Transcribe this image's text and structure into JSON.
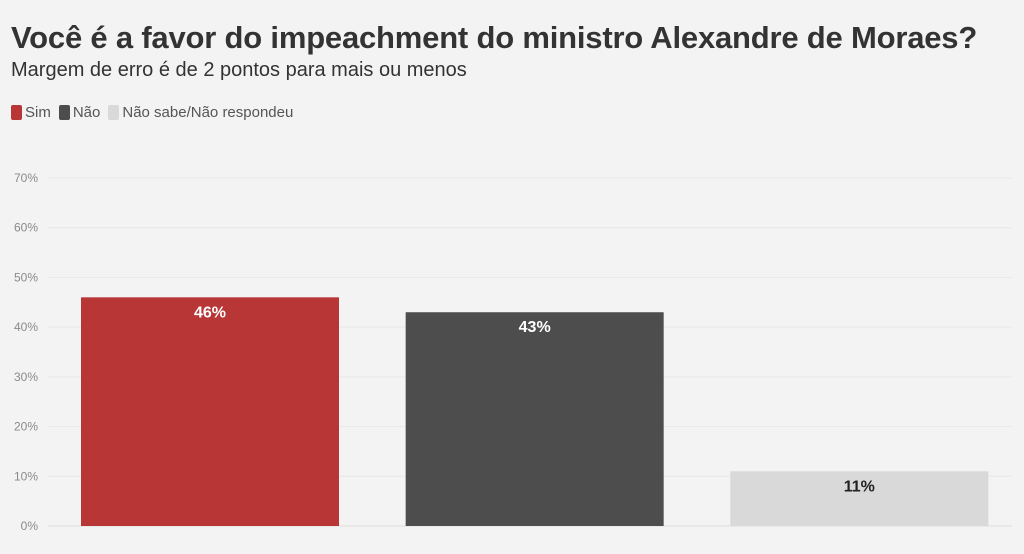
{
  "title": "Você é a favor do impeachment do ministro Alexandre de Moraes?",
  "subtitle": "Margem de erro é de 2 pontos para mais ou menos",
  "legend": [
    {
      "label": "Sim",
      "color": "#b83636"
    },
    {
      "label": "Não",
      "color": "#4d4d4d"
    },
    {
      "label": "Não sabe/Não respondeu",
      "color": "#d9d9d9"
    }
  ],
  "chart_data": {
    "type": "bar",
    "categories": [
      "Sim",
      "Não",
      "Não sabe/Não respondeu"
    ],
    "values": [
      46,
      43,
      11
    ],
    "value_labels": [
      "46%",
      "43%",
      "11%"
    ],
    "colors": [
      "#b83636",
      "#4d4d4d",
      "#d9d9d9"
    ],
    "label_colors": [
      "#ffffff",
      "#ffffff",
      "#222222"
    ],
    "title": "Você é a favor do impeachment do ministro Alexandre de Moraes?",
    "subtitle": "Margem de erro é de 2 pontos para mais ou menos",
    "ylim": [
      0,
      70
    ],
    "yticks": [
      0,
      10,
      20,
      30,
      40,
      50,
      60,
      70
    ],
    "ytick_labels": [
      "0%",
      "10%",
      "20%",
      "30%",
      "40%",
      "50%",
      "60%",
      "70%"
    ],
    "grid": true,
    "legend_position": "top-left"
  }
}
